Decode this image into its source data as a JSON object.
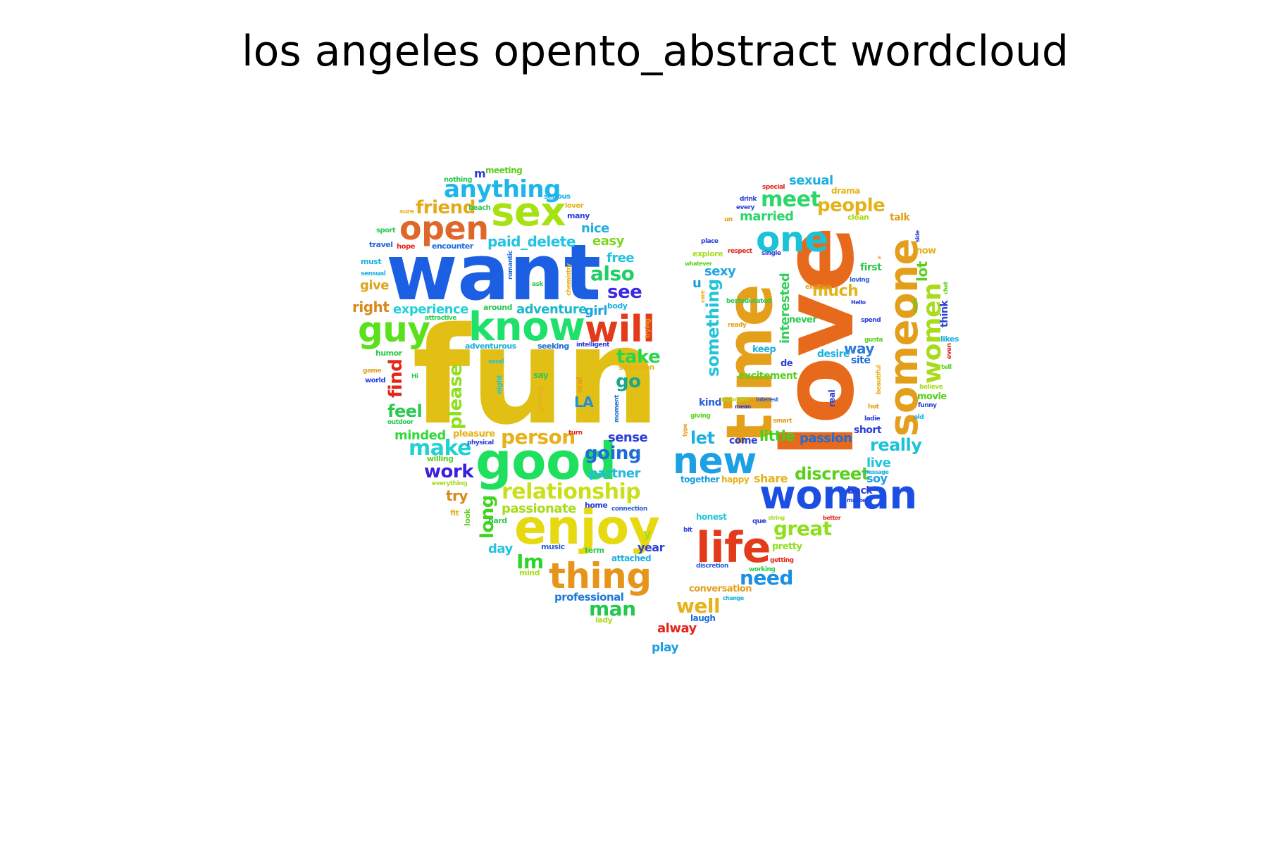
{
  "title": "los angeles opento_abstract wordcloud",
  "words": [
    {
      "text": "fun",
      "color": "#e2bf14"
    },
    {
      "text": "want",
      "color": "#1c5fe3"
    },
    {
      "text": "sex",
      "color": "#a6e212"
    },
    {
      "text": "open",
      "color": "#e0672a"
    },
    {
      "text": "know",
      "color": "#1ee16c"
    },
    {
      "text": "will",
      "color": "#e23a1a"
    },
    {
      "text": "guy",
      "color": "#5be01c"
    },
    {
      "text": "good",
      "color": "#1fe05e"
    },
    {
      "text": "enjoy",
      "color": "#e7d90f"
    },
    {
      "text": "thing",
      "color": "#e7951a"
    },
    {
      "text": "anything",
      "color": "#1cb7e8"
    },
    {
      "text": "friend",
      "color": "#e5aa1a"
    },
    {
      "text": "paid_delete",
      "color": "#22c4e5"
    },
    {
      "text": "also",
      "color": "#20cf66"
    },
    {
      "text": "see",
      "color": "#3a2ae0"
    },
    {
      "text": "take",
      "color": "#27d64d"
    },
    {
      "text": "go",
      "color": "#18a88a"
    },
    {
      "text": "please",
      "color": "#8ee01c"
    },
    {
      "text": "find",
      "color": "#e2271b"
    },
    {
      "text": "feel",
      "color": "#2bc950"
    },
    {
      "text": "make",
      "color": "#21d1d4"
    },
    {
      "text": "work",
      "color": "#3b21d9"
    },
    {
      "text": "person",
      "color": "#e6b11a"
    },
    {
      "text": "going",
      "color": "#1e6cd9"
    },
    {
      "text": "relationship",
      "color": "#c8e019"
    },
    {
      "text": "long",
      "color": "#3fd41d"
    },
    {
      "text": "Im",
      "color": "#2bd62a"
    },
    {
      "text": "man",
      "color": "#22c94c"
    },
    {
      "text": "experience",
      "color": "#20d1d8"
    },
    {
      "text": "adventure",
      "color": "#1bb8cc"
    },
    {
      "text": "right",
      "color": "#d88a1c"
    },
    {
      "text": "give",
      "color": "#dfa418"
    },
    {
      "text": "nice",
      "color": "#1fb0e0"
    },
    {
      "text": "easy",
      "color": "#7fd41c"
    },
    {
      "text": "free",
      "color": "#20c4e0"
    },
    {
      "text": "girl",
      "color": "#1ba4e0"
    },
    {
      "text": "minded",
      "color": "#32d93d"
    },
    {
      "text": "try",
      "color": "#d88a1c"
    },
    {
      "text": "partner",
      "color": "#25b9e0"
    },
    {
      "text": "passionate",
      "color": "#a8dc1a"
    },
    {
      "text": "sense",
      "color": "#2b3fd8"
    },
    {
      "text": "day",
      "color": "#22c4e0"
    },
    {
      "text": "year",
      "color": "#2b3fd8"
    },
    {
      "text": "professional",
      "color": "#1e7ad9"
    },
    {
      "text": "y",
      "color": "#a8dc1a"
    },
    {
      "text": "LA",
      "color": "#1e8fd9"
    },
    {
      "text": "love",
      "color": "#e76a1c"
    },
    {
      "text": "time",
      "color": "#e4a01a"
    },
    {
      "text": "one",
      "color": "#1bc2d8"
    },
    {
      "text": "someone",
      "color": "#e39e1a"
    },
    {
      "text": "women",
      "color": "#a8dc1a"
    },
    {
      "text": "woman",
      "color": "#1b4fe3"
    },
    {
      "text": "new",
      "color": "#1ba0e3"
    },
    {
      "text": "life",
      "color": "#e23a1a"
    },
    {
      "text": "meet",
      "color": "#2bd66a"
    },
    {
      "text": "people",
      "color": "#e5b21a"
    },
    {
      "text": "sexual",
      "color": "#1bb0e0"
    },
    {
      "text": "married",
      "color": "#2bd66a"
    },
    {
      "text": "something",
      "color": "#22c4d8"
    },
    {
      "text": "interested",
      "color": "#31cf5a"
    },
    {
      "text": "much",
      "color": "#e5b21a"
    },
    {
      "text": "lot",
      "color": "#5bcf1c"
    },
    {
      "text": "way",
      "color": "#2b7ad9"
    },
    {
      "text": "let",
      "color": "#1bb0e0"
    },
    {
      "text": "little",
      "color": "#3fd41d"
    },
    {
      "text": "passion",
      "color": "#1e6cd9"
    },
    {
      "text": "really",
      "color": "#1bc2d8"
    },
    {
      "text": "great",
      "color": "#8ee01c"
    },
    {
      "text": "discreet",
      "color": "#5bcf1c"
    },
    {
      "text": "need",
      "color": "#1b8fe3"
    },
    {
      "text": "well",
      "color": "#e5b21a"
    },
    {
      "text": "alway",
      "color": "#e2271b"
    },
    {
      "text": "play",
      "color": "#1b9fe0"
    },
    {
      "text": "sexy",
      "color": "#1ba4e0"
    },
    {
      "text": "excitement",
      "color": "#5bcf1c"
    },
    {
      "text": "share",
      "color": "#e5b21a"
    },
    {
      "text": "live",
      "color": "#22c4e0"
    },
    {
      "text": "soy",
      "color": "#1b9fe0"
    },
    {
      "text": "site",
      "color": "#1e6cd9"
    },
    {
      "text": "u",
      "color": "#1b9fe0"
    },
    {
      "text": "kind",
      "color": "#2b5fd9"
    },
    {
      "text": "come",
      "color": "#2b3fd8"
    },
    {
      "text": "back",
      "color": "#2b3fd8"
    },
    {
      "text": "desire",
      "color": "#1bb0e0"
    },
    {
      "text": "first",
      "color": "#2bc950"
    },
    {
      "text": "short",
      "color": "#2b3fd8"
    },
    {
      "text": "keep",
      "color": "#1bb0e0"
    },
    {
      "text": "pretty",
      "color": "#8ee01c"
    },
    {
      "text": "movie",
      "color": "#5bcf1c"
    },
    {
      "text": "conversation",
      "color": "#e39e1a"
    },
    {
      "text": "talk",
      "color": "#e39e1a"
    },
    {
      "text": "never",
      "color": "#2bc950"
    },
    {
      "text": "now",
      "color": "#e5b21a"
    },
    {
      "text": "think",
      "color": "#2b3fd8"
    },
    {
      "text": "laugh",
      "color": "#1e6cd9"
    },
    {
      "text": "honest",
      "color": "#22c4d8"
    },
    {
      "text": "real",
      "color": "#2b3fd8"
    },
    {
      "text": "de",
      "color": "#2b3fd8"
    },
    {
      "text": "together",
      "color": "#1b9fe0"
    },
    {
      "text": "happy",
      "color": "#e5b21a"
    },
    {
      "text": "m",
      "color": "#2b3fd8"
    },
    {
      "text": "meeting",
      "color": "#5bcf1c"
    },
    {
      "text": "nothing",
      "color": "#2bc950"
    },
    {
      "text": "serious",
      "color": "#1bb0e0"
    },
    {
      "text": "sure",
      "color": "#e5b21a"
    },
    {
      "text": "beach",
      "color": "#2bc950"
    },
    {
      "text": "lover",
      "color": "#e5b21a"
    },
    {
      "text": "many",
      "color": "#2b3fd8"
    },
    {
      "text": "sport",
      "color": "#2bc950"
    },
    {
      "text": "travel",
      "color": "#1e6cd9"
    },
    {
      "text": "hope",
      "color": "#e2271b"
    },
    {
      "text": "encounter",
      "color": "#1e6cd9"
    },
    {
      "text": "must",
      "color": "#1bb0e0"
    },
    {
      "text": "sensual",
      "color": "#1bb0e0"
    },
    {
      "text": "romantic",
      "color": "#1e6cd9"
    },
    {
      "text": "chemistry",
      "color": "#e5b21a"
    },
    {
      "text": "ask",
      "color": "#2bc950"
    },
    {
      "text": "around",
      "color": "#2bc950"
    },
    {
      "text": "body",
      "color": "#1bb0e0"
    },
    {
      "text": "attractive",
      "color": "#2bc950"
    },
    {
      "text": "trying",
      "color": "#e39e1a"
    },
    {
      "text": "humor",
      "color": "#2bc950"
    },
    {
      "text": "adventurous",
      "color": "#1bb0e0"
    },
    {
      "text": "seeking",
      "color": "#1e6cd9"
    },
    {
      "text": "intelligent",
      "color": "#2b3fd8"
    },
    {
      "text": "situation",
      "color": "#e5b21a"
    },
    {
      "text": "send",
      "color": "#22c4d8"
    },
    {
      "text": "game",
      "color": "#e39e1a"
    },
    {
      "text": "world",
      "color": "#2b3fd8"
    },
    {
      "text": "Hi",
      "color": "#2bc950"
    },
    {
      "text": "night",
      "color": "#22c4d8"
    },
    {
      "text": "say",
      "color": "#2bc950"
    },
    {
      "text": "young",
      "color": "#e5b21a"
    },
    {
      "text": "oral",
      "color": "#e39e1a"
    },
    {
      "text": "moment",
      "color": "#1e6cd9"
    },
    {
      "text": "outdoor",
      "color": "#2bc950"
    },
    {
      "text": "pleasure",
      "color": "#e5b21a"
    },
    {
      "text": "turn",
      "color": "#e2271b"
    },
    {
      "text": "physical",
      "color": "#2b3fd8"
    },
    {
      "text": "willing",
      "color": "#5bcf1c"
    },
    {
      "text": "everything",
      "color": "#a8dc1a"
    },
    {
      "text": "fit",
      "color": "#e5b21a"
    },
    {
      "text": "look",
      "color": "#5bcf1c"
    },
    {
      "text": "hard",
      "color": "#2bc950"
    },
    {
      "text": "home",
      "color": "#2b3fd8"
    },
    {
      "text": "connection",
      "color": "#2b5fd9"
    },
    {
      "text": "music",
      "color": "#2b5fd9"
    },
    {
      "text": "term",
      "color": "#2bc950"
    },
    {
      "text": "attached",
      "color": "#1bb0e0"
    },
    {
      "text": "mind",
      "color": "#a8dc1a"
    },
    {
      "text": "lady",
      "color": "#a8dc1a"
    },
    {
      "text": "special",
      "color": "#e2271b"
    },
    {
      "text": "drama",
      "color": "#e5b21a"
    },
    {
      "text": "drink",
      "color": "#2b3fd8"
    },
    {
      "text": "every",
      "color": "#2b3fd8"
    },
    {
      "text": "un",
      "color": "#e39e1a"
    },
    {
      "text": "clean",
      "color": "#a8dc1a"
    },
    {
      "text": "place",
      "color": "#2b3fd8"
    },
    {
      "text": "side",
      "color": "#2b3fd8"
    },
    {
      "text": "explore",
      "color": "#a8dc1a"
    },
    {
      "text": "respect",
      "color": "#e2271b"
    },
    {
      "text": "whatever",
      "color": "#5bcf1c"
    },
    {
      "text": "single",
      "color": "#2b3fd8"
    },
    {
      "text": "s",
      "color": "#e39e1a"
    },
    {
      "text": "loving",
      "color": "#2b5fd9"
    },
    {
      "text": "chat",
      "color": "#5bcf1c"
    },
    {
      "text": "exciting",
      "color": "#e39e1a"
    },
    {
      "text": "care",
      "color": "#e5b21a"
    },
    {
      "text": "besteducated",
      "color": "#2bc950"
    },
    {
      "text": "Hello",
      "color": "#2b3fd8"
    },
    {
      "text": "earth",
      "color": "#5bcf1c"
    },
    {
      "text": "ready",
      "color": "#e39e1a"
    },
    {
      "text": "spend",
      "color": "#2b3fd8"
    },
    {
      "text": "likes",
      "color": "#1bb0e0"
    },
    {
      "text": "gusta",
      "color": "#5bcf1c"
    },
    {
      "text": "even",
      "color": "#e2271b"
    },
    {
      "text": "tell",
      "color": "#5bcf1c"
    },
    {
      "text": "beautiful",
      "color": "#e5b21a"
    },
    {
      "text": "believe",
      "color": "#a8dc1a"
    },
    {
      "text": "important",
      "color": "#a8dc1a"
    },
    {
      "text": "interest",
      "color": "#2b5fd9"
    },
    {
      "text": "mean",
      "color": "#2b3fd8"
    },
    {
      "text": "hot",
      "color": "#e39e1a"
    },
    {
      "text": "funny",
      "color": "#2b3fd8"
    },
    {
      "text": "giving",
      "color": "#5bcf1c"
    },
    {
      "text": "smart",
      "color": "#e39e1a"
    },
    {
      "text": "ladie",
      "color": "#2b3fd8"
    },
    {
      "text": "old",
      "color": "#1bb0e0"
    },
    {
      "text": "type",
      "color": "#e39e1a"
    },
    {
      "text": "message",
      "color": "#1bb0e0"
    },
    {
      "text": "maybe",
      "color": "#2b3fd8"
    },
    {
      "text": "que",
      "color": "#2b3fd8"
    },
    {
      "text": "string",
      "color": "#a8dc1a"
    },
    {
      "text": "better",
      "color": "#e2271b"
    },
    {
      "text": "bit",
      "color": "#2b3fd8"
    },
    {
      "text": "getting",
      "color": "#e2271b"
    },
    {
      "text": "discretion",
      "color": "#2b5fd9"
    },
    {
      "text": "working",
      "color": "#2bc950"
    },
    {
      "text": "change",
      "color": "#1bb0e0"
    }
  ]
}
